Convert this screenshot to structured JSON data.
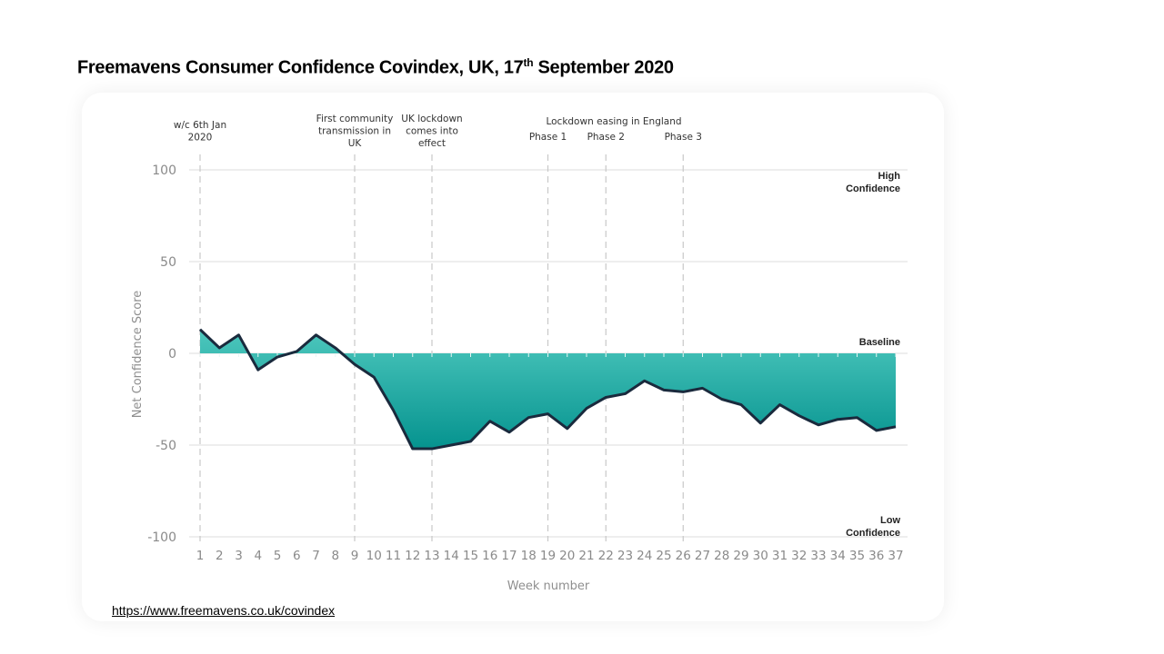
{
  "slide": {
    "title_main": "Freemavens Consumer Confidence Covindex, UK, 17",
    "title_sup": "th",
    "title_end": " September 2020",
    "source_url_text": "https://www.freemavens.co.uk/covindex"
  },
  "colors": {
    "area_top": "#4dc7bd",
    "area_bottom": "#05938f",
    "line": "#1a2a3d",
    "grid": "#e4e4e4",
    "event_line": "#c8c8c8"
  },
  "chart_data": {
    "type": "area",
    "title": "Freemavens Consumer Confidence Covindex, UK, 17th September 2020",
    "xlabel": "Week number",
    "ylabel": "Net Confidence Score",
    "ylim": [
      -100,
      100
    ],
    "yticks": [
      100,
      50,
      0,
      -50,
      -100
    ],
    "x": [
      1,
      2,
      3,
      4,
      5,
      6,
      7,
      8,
      9,
      10,
      11,
      12,
      13,
      14,
      15,
      16,
      17,
      18,
      19,
      20,
      21,
      22,
      23,
      24,
      25,
      26,
      27,
      28,
      29,
      30,
      31,
      32,
      33,
      34,
      35,
      36,
      37
    ],
    "series": [
      {
        "name": "Net Confidence Score",
        "values": [
          13,
          3,
          10,
          -9,
          -2,
          1,
          10,
          3,
          -6,
          -13,
          -31,
          -52,
          -52,
          -50,
          -48,
          -37,
          -43,
          -35,
          -33,
          -41,
          -30,
          -24,
          -22,
          -15,
          -20,
          -21,
          -19,
          -25,
          -28,
          -38,
          -28,
          -34,
          -39,
          -36,
          -35,
          -42,
          -40
        ]
      }
    ],
    "grid": true,
    "side_labels": [
      {
        "y": 100,
        "lines": [
          "High",
          "Confidence"
        ]
      },
      {
        "y": 0,
        "lines": [
          "Baseline"
        ]
      },
      {
        "y": -100,
        "lines": [
          "Low",
          "Confidence"
        ]
      }
    ],
    "events": [
      {
        "week": 1,
        "lines": [
          "w/c 6th Jan",
          "2020"
        ]
      },
      {
        "week": 9,
        "lines": [
          "First community",
          "transmission in",
          "UK"
        ]
      },
      {
        "week": 13,
        "lines": [
          "UK lockdown",
          "comes into",
          "effect"
        ]
      },
      {
        "week": 19,
        "lines": [
          "Phase 1"
        ]
      },
      {
        "week": 22,
        "lines": [
          "Phase 2"
        ]
      },
      {
        "week": 26,
        "lines": [
          "Phase 3"
        ]
      }
    ],
    "group_annotation": "Lockdown easing in England"
  }
}
